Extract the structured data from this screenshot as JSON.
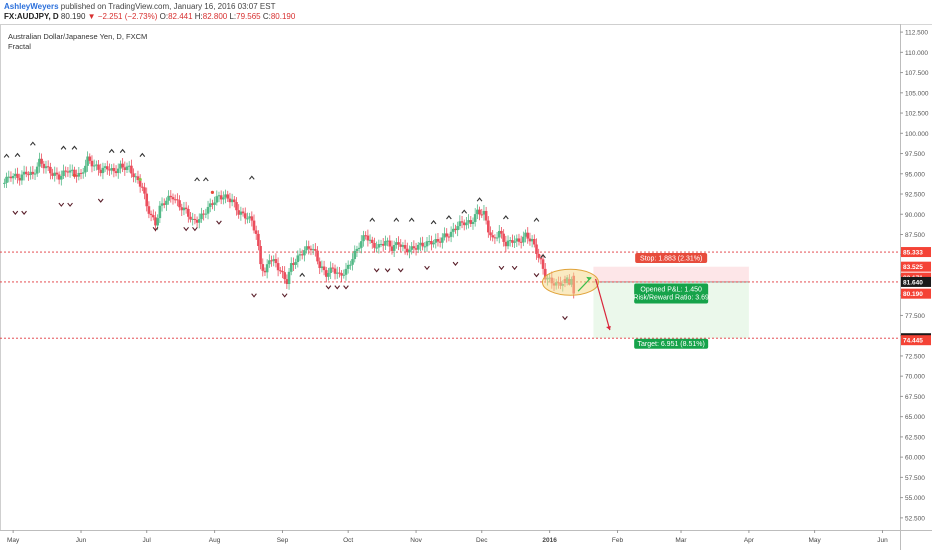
{
  "header": {
    "author": "AshleyWeyers",
    "published_text": "published on TradingView.com, January 16, 2016 03:07 EST",
    "symbol": "FX:AUDJPY, D",
    "last_price": "80.190",
    "change_arrow": "▼",
    "change": "−2.251 (−2.73%)",
    "open_label": "O:",
    "open": "82.441",
    "high_label": "H:",
    "high": "82.800",
    "low_label": "L:",
    "low": "79.565",
    "close_label": "C:",
    "close": "80.190"
  },
  "legend": {
    "title": "Australian Dollar/Japanese Yen, D, FXCM",
    "indicator": "Fractal"
  },
  "chart_data": {
    "type": "candlestick",
    "title": "Australian Dollar/Japanese Yen, D, FXCM",
    "ylim": [
      51,
      113.5
    ],
    "y_ticks": [
      "112.500",
      "110.000",
      "107.500",
      "105.000",
      "102.500",
      "100.000",
      "97.500",
      "95.000",
      "92.500",
      "90.000",
      "87.500",
      "85.000",
      "82.500",
      "80.000",
      "77.500",
      "75.000",
      "72.500",
      "70.000",
      "67.500",
      "65.000",
      "62.500",
      "60.000",
      "57.500",
      "55.000",
      "52.500"
    ],
    "x_ticks": [
      {
        "label": "May",
        "t": 0
      },
      {
        "label": "Jun",
        "t": 31
      },
      {
        "label": "Jul",
        "t": 61
      },
      {
        "label": "Aug",
        "t": 92
      },
      {
        "label": "Sep",
        "t": 123
      },
      {
        "label": "Oct",
        "t": 153
      },
      {
        "label": "Nov",
        "t": 184
      },
      {
        "label": "Dec",
        "t": 214
      },
      {
        "label": "2016",
        "t": 245,
        "bold": true
      },
      {
        "label": "Feb",
        "t": 276
      },
      {
        "label": "Mar",
        "t": 305
      },
      {
        "label": "Apr",
        "t": 336
      },
      {
        "label": "May",
        "t": 366
      },
      {
        "label": "Jun",
        "t": 397
      }
    ],
    "x_range_days": [
      -6,
      405
    ],
    "closes_path": [
      [
        -4,
        93.8
      ],
      [
        0,
        94.8
      ],
      [
        4,
        94.5
      ],
      [
        7,
        95.2
      ],
      [
        10,
        94.8
      ],
      [
        13,
        96.5
      ],
      [
        16,
        95.8
      ],
      [
        19,
        95.0
      ],
      [
        22,
        94.6
      ],
      [
        26,
        95.5
      ],
      [
        29,
        95.0
      ],
      [
        32,
        94.8
      ],
      [
        35,
        96.8
      ],
      [
        38,
        96.0
      ],
      [
        41,
        95.4
      ],
      [
        44,
        95.8
      ],
      [
        47,
        95.2
      ],
      [
        50,
        95.9
      ],
      [
        54,
        95.7
      ],
      [
        57,
        94.4
      ],
      [
        60,
        93.4
      ],
      [
        62,
        91.0
      ],
      [
        64,
        89.8
      ],
      [
        66,
        88.8
      ],
      [
        68,
        90.8
      ],
      [
        71,
        91.8
      ],
      [
        74,
        92.2
      ],
      [
        77,
        91.0
      ],
      [
        80,
        90.4
      ],
      [
        83,
        89.1
      ],
      [
        86,
        89.4
      ],
      [
        89,
        90.4
      ],
      [
        92,
        91.4
      ],
      [
        95,
        92.2
      ],
      [
        98,
        92.1
      ],
      [
        101,
        91.7
      ],
      [
        104,
        90.2
      ],
      [
        107,
        89.8
      ],
      [
        110,
        89.2
      ],
      [
        112,
        87.5
      ],
      [
        114,
        84.0
      ],
      [
        116,
        82.6
      ],
      [
        118,
        84.6
      ],
      [
        121,
        83.9
      ],
      [
        124,
        82.5
      ],
      [
        126,
        81.7
      ],
      [
        128,
        83.7
      ],
      [
        131,
        84.6
      ],
      [
        134,
        85.6
      ],
      [
        137,
        85.9
      ],
      [
        139,
        85.2
      ],
      [
        141,
        83.6
      ],
      [
        144,
        82.6
      ],
      [
        147,
        83.3
      ],
      [
        150,
        82.4
      ],
      [
        153,
        83.0
      ],
      [
        156,
        84.6
      ],
      [
        159,
        86.2
      ],
      [
        162,
        87.5
      ],
      [
        165,
        86.2
      ],
      [
        168,
        86.0
      ],
      [
        171,
        86.7
      ],
      [
        174,
        85.8
      ],
      [
        177,
        86.5
      ],
      [
        180,
        85.6
      ],
      [
        183,
        85.7
      ],
      [
        186,
        86.1
      ],
      [
        189,
        86.3
      ],
      [
        192,
        86.6
      ],
      [
        195,
        86.6
      ],
      [
        198,
        87.3
      ],
      [
        201,
        87.6
      ],
      [
        204,
        88.7
      ],
      [
        207,
        89.0
      ],
      [
        210,
        88.9
      ],
      [
        213,
        90.3
      ],
      [
        216,
        90.1
      ],
      [
        218,
        88.1
      ],
      [
        220,
        86.8
      ],
      [
        223,
        87.8
      ],
      [
        226,
        86.3
      ],
      [
        229,
        86.8
      ],
      [
        232,
        86.6
      ],
      [
        235,
        87.4
      ],
      [
        238,
        86.7
      ],
      [
        240,
        85.4
      ],
      [
        242,
        84.1
      ],
      [
        244,
        82.3
      ],
      [
        247,
        81.6
      ],
      [
        250,
        81.3
      ],
      [
        253,
        81.7
      ],
      [
        256,
        81.1
      ],
      [
        257,
        80.19
      ]
    ],
    "recent_candles": [
      [
        252,
        82.0,
        82.4,
        81.0,
        81.5
      ],
      [
        253,
        81.5,
        82.5,
        81.2,
        82.2
      ],
      [
        254,
        82.0,
        82.6,
        81.2,
        81.3
      ],
      [
        255,
        81.3,
        82.3,
        81.0,
        82.0
      ],
      [
        256,
        82.4,
        82.8,
        79.6,
        80.2
      ]
    ],
    "levels": {
      "resistance": 85.333,
      "upper_box": 83.525,
      "mid_box": 82.171,
      "entry": 81.64,
      "current": 80.19,
      "target_line": 74.689,
      "target_price": 74.445
    },
    "fractals_up": [
      [
        -3,
        97.2
      ],
      [
        2,
        97.3
      ],
      [
        9,
        98.7
      ],
      [
        23,
        98.2
      ],
      [
        28,
        98.2
      ],
      [
        45,
        97.8
      ],
      [
        50,
        97.8
      ],
      [
        59,
        97.3
      ],
      [
        84,
        94.3
      ],
      [
        88,
        94.3
      ],
      [
        109,
        94.5
      ],
      [
        132,
        82.5
      ],
      [
        164,
        89.3
      ],
      [
        175,
        89.3
      ],
      [
        182,
        89.3
      ],
      [
        192,
        89.0
      ],
      [
        199,
        89.6
      ],
      [
        206,
        90.3
      ],
      [
        213,
        91.8
      ],
      [
        225,
        89.6
      ],
      [
        239,
        89.3
      ],
      [
        242,
        84.8
      ]
    ],
    "fractals_down": [
      [
        1,
        90.2
      ],
      [
        5,
        90.2
      ],
      [
        22,
        91.2
      ],
      [
        26,
        91.2
      ],
      [
        40,
        91.7
      ],
      [
        65,
        88.2
      ],
      [
        79,
        88.2
      ],
      [
        83,
        88.2
      ],
      [
        94,
        89.0
      ],
      [
        110,
        80.0
      ],
      [
        124,
        80.0
      ],
      [
        144,
        81.0
      ],
      [
        148,
        81.0
      ],
      [
        152,
        81.0
      ],
      [
        166,
        83.1
      ],
      [
        171,
        83.1
      ],
      [
        177,
        83.1
      ],
      [
        189,
        83.4
      ],
      [
        202,
        83.9
      ],
      [
        223,
        83.4
      ],
      [
        229,
        83.4
      ],
      [
        239,
        82.5
      ],
      [
        252,
        77.2
      ]
    ],
    "fractal_dots": [
      [
        28,
        94.8
      ],
      [
        58,
        94.3
      ],
      [
        91,
        92.7
      ]
    ],
    "position": {
      "stop_label": "Stop: 1.883 (2.31%)",
      "pnl_label": "Opened P&L: 1.450",
      "rr_label": "Risk/Reward Ratio: 3.69",
      "target_label": "Target: 6.951 (8.51%)",
      "start_day": 265,
      "end_day": 336,
      "entry": 81.64,
      "stop": 83.523,
      "target": 74.689
    },
    "colors": {
      "up": "#53b987",
      "down": "#eb4d5c",
      "line": "#e0343a",
      "profit": "#e9f7e9",
      "loss": "#fde3e6",
      "label_green": "#16a34a",
      "label_red": "#e74c3c",
      "ellipse": "#f3d38a",
      "arrow_green": "#3dbd4a"
    }
  }
}
